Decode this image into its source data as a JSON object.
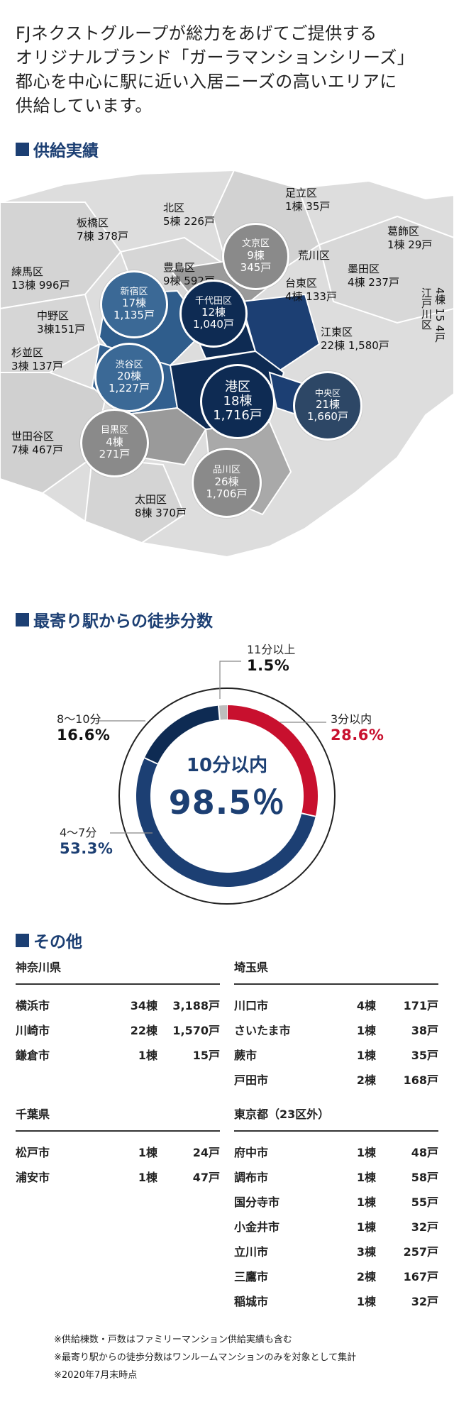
{
  "intro": {
    "lines": [
      "FJネクストグループが総力をあげてご提供する",
      "オリジナルブランド「ガーラマンションシリーズ」",
      "都心を中心に駅に近い入居ニーズの高いエリアに",
      "供給しています。"
    ]
  },
  "sections": {
    "supply": "供給実績",
    "walk": "最寄り駅からの徒歩分数",
    "other": "その他"
  },
  "colors": {
    "navy": "#1c3f73",
    "dark_navy": "#0e2b53",
    "mid_blue": "#2f5d8c",
    "red": "#c8102e",
    "gray_bubble": "#8a8a8a",
    "map_gray": "#dcdcdc"
  },
  "map": {
    "wards": [
      {
        "name": "足立区",
        "value": "1棟 35戸"
      },
      {
        "name": "北区",
        "value": "5棟 226戸"
      },
      {
        "name": "板橋区",
        "value": "7棟 378戸"
      },
      {
        "name": "葛飾区",
        "value": "1棟 29戸"
      },
      {
        "name": "荒川区",
        "value": ""
      },
      {
        "name": "練馬区",
        "value": "13棟 996戸"
      },
      {
        "name": "豊島区",
        "value": "9棟 592戸"
      },
      {
        "name": "墨田区",
        "value": "4棟 237戸"
      },
      {
        "name": "台東区",
        "value": "4棟 133戸"
      },
      {
        "name": "中野区",
        "value": "3棟151戸"
      },
      {
        "name": "江東区",
        "value": "22棟 1,580戸"
      },
      {
        "name": "杉並区",
        "value": "3棟 137戸"
      },
      {
        "name": "世田谷区",
        "value": "7棟 467戸"
      },
      {
        "name": "太田区",
        "value": "8棟 370戸"
      }
    ],
    "edogawa": {
      "name": "江戸川区",
      "value": "4棟 15 4戸"
    },
    "bubbles": [
      {
        "name": "文京区",
        "count": "9棟",
        "units": "345戸"
      },
      {
        "name": "新宿区",
        "count": "17棟",
        "units": "1,135戸"
      },
      {
        "name": "千代田区",
        "count": "12棟",
        "units": "1,040戸"
      },
      {
        "name": "渋谷区",
        "count": "20棟",
        "units": "1,227戸"
      },
      {
        "name": "港区",
        "count": "18棟",
        "units": "1,716戸"
      },
      {
        "name": "中央区",
        "count": "21棟",
        "units": "1,660戸"
      },
      {
        "name": "目黒区",
        "count": "4棟",
        "units": "271戸"
      },
      {
        "name": "品川区",
        "count": "26棟",
        "units": "1,706戸"
      }
    ]
  },
  "walk_chart": {
    "center_label": "10分以内",
    "center_value": "98.5％"
  },
  "chart_data": {
    "type": "pie",
    "title": "最寄り駅からの徒歩分数",
    "categories": [
      "3分以内",
      "4〜7分",
      "8〜10分",
      "11分以上"
    ],
    "values": [
      28.6,
      53.3,
      16.6,
      1.5
    ],
    "labels": [
      "28.6%",
      "53.3%",
      "16.6%",
      "1.5%"
    ],
    "colors": [
      "#c8102e",
      "#1c3f73",
      "#0e2b53",
      "#bdbdbd"
    ],
    "annotation": "10分以内 98.5％"
  },
  "other": {
    "kanagawa": {
      "title": "神奈川県",
      "rows": [
        [
          "横浜市",
          "34棟",
          "3,188戸"
        ],
        [
          "川崎市",
          "22棟",
          "1,570戸"
        ],
        [
          "鎌倉市",
          "1棟",
          "15戸"
        ]
      ]
    },
    "saitama": {
      "title": "埼玉県",
      "rows": [
        [
          "川口市",
          "4棟",
          "171戸"
        ],
        [
          "さいたま市",
          "1棟",
          "38戸"
        ],
        [
          "蕨市",
          "1棟",
          "35戸"
        ],
        [
          "戸田市",
          "2棟",
          "168戸"
        ]
      ]
    },
    "chiba": {
      "title": "千葉県",
      "rows": [
        [
          "松戸市",
          "1棟",
          "24戸"
        ],
        [
          "浦安市",
          "1棟",
          "47戸"
        ]
      ]
    },
    "tokyo": {
      "title": "東京都（23区外）",
      "rows": [
        [
          "府中市",
          "1棟",
          "48戸"
        ],
        [
          "調布市",
          "1棟",
          "58戸"
        ],
        [
          "国分寺市",
          "1棟",
          "55戸"
        ],
        [
          "小金井市",
          "1棟",
          "32戸"
        ],
        [
          "立川市",
          "3棟",
          "257戸"
        ],
        [
          "三鷹市",
          "2棟",
          "167戸"
        ],
        [
          "稲城市",
          "1棟",
          "32戸"
        ]
      ]
    }
  },
  "notes": [
    "※供給棟数・戸数はファミリーマンション供給実績も含む",
    "※最寄り駅からの徒歩分数はワンルームマンションのみを対象として集計",
    "※2020年7月末時点"
  ]
}
